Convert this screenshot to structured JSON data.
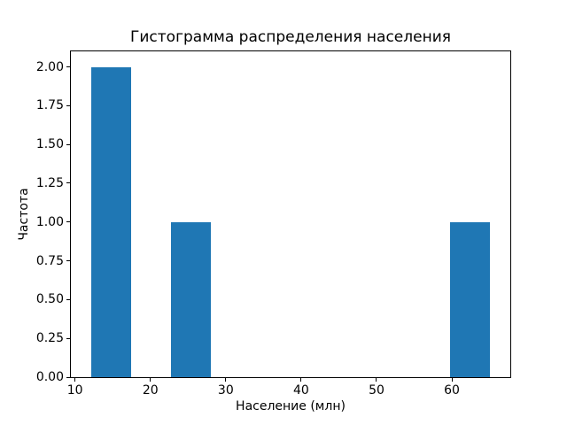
{
  "chart_data": {
    "type": "bar",
    "subtype": "histogram",
    "title": "Гистограмма распределения населения",
    "xlabel": "Население (млн)",
    "ylabel": "Частота",
    "bin_edges": [
      12.1,
      17.4,
      22.7,
      28.0,
      33.3,
      38.6,
      43.9,
      49.2,
      54.5,
      59.8,
      65.1
    ],
    "counts": [
      2,
      0,
      1,
      0,
      0,
      0,
      0,
      0,
      0,
      1
    ],
    "xticks": [
      {
        "value": 10,
        "label": "10"
      },
      {
        "value": 20,
        "label": "20"
      },
      {
        "value": 30,
        "label": "30"
      },
      {
        "value": 40,
        "label": "40"
      },
      {
        "value": 50,
        "label": "50"
      },
      {
        "value": 60,
        "label": "60"
      }
    ],
    "yticks": [
      {
        "value": 0,
        "label": "0.00"
      },
      {
        "value": 0.25,
        "label": "0.25"
      },
      {
        "value": 0.5,
        "label": "0.50"
      },
      {
        "value": 0.75,
        "label": "0.75"
      },
      {
        "value": 1,
        "label": "1.00"
      },
      {
        "value": 1.25,
        "label": "1.25"
      },
      {
        "value": 1.5,
        "label": "1.50"
      },
      {
        "value": 1.75,
        "label": "1.75"
      },
      {
        "value": 2,
        "label": "2.00"
      }
    ],
    "xlim": [
      9.45,
      67.75
    ],
    "ylim": [
      0,
      2.1
    ],
    "bar_color": "#1f77b4",
    "axis_color": "#000000",
    "background_color": "#ffffff",
    "grid": false,
    "legend": false
  }
}
